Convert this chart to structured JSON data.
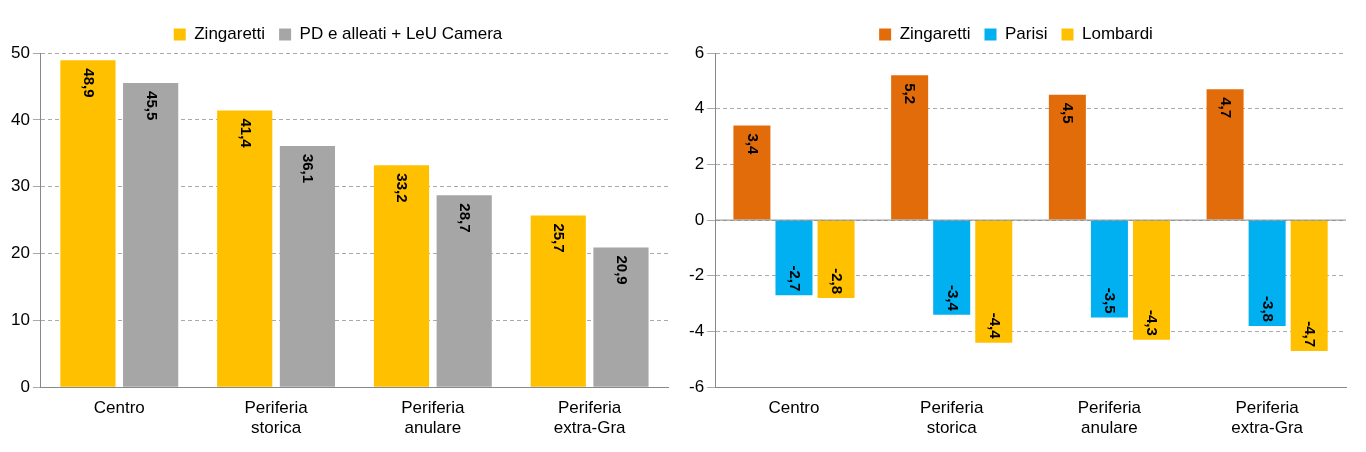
{
  "chart_data": [
    {
      "type": "bar",
      "categories": [
        "Centro",
        "Periferia storica",
        "Periferia anulare",
        "Periferia extra-Gra"
      ],
      "ylim": [
        0,
        50
      ],
      "yticks": [
        0,
        10,
        20,
        30,
        40,
        50
      ],
      "grid": "y",
      "legend": "top",
      "series": [
        {
          "name": "Zingaretti",
          "color": "#ffc000",
          "values": [
            48.9,
            41.4,
            33.2,
            25.7
          ],
          "value_labels": [
            "48,9",
            "41,4",
            "33,2",
            "25,7"
          ]
        },
        {
          "name": "PD e alleati + LeU Camera",
          "color": "#a6a6a6",
          "values": [
            45.5,
            36.1,
            28.7,
            20.9
          ],
          "value_labels": [
            "45,5",
            "36,1",
            "28,7",
            "20,9"
          ]
        }
      ]
    },
    {
      "type": "bar",
      "categories": [
        "Centro",
        "Periferia storica",
        "Periferia anulare",
        "Periferia extra-Gra"
      ],
      "ylim": [
        -6,
        6
      ],
      "ref_lines": [
        {
          "axis": "y",
          "value": 0,
          "color": "#888888"
        }
      ],
      "yticks": [
        -6,
        -4,
        -2,
        0,
        2,
        4,
        6
      ],
      "grid": "y",
      "legend": "top",
      "series": [
        {
          "name": "Zingaretti",
          "color": "#e36c0a",
          "values": [
            3.4,
            5.2,
            4.5,
            4.7
          ],
          "value_labels": [
            "3,4",
            "5,2",
            "4,5",
            "4,7"
          ]
        },
        {
          "name": "Parisi",
          "color": "#00b0f0",
          "values": [
            -2.7,
            -3.4,
            -3.5,
            -3.8
          ],
          "value_labels": [
            "-2,7",
            "-3,4",
            "-3,5",
            "-3,8"
          ]
        },
        {
          "name": "Lombardi",
          "color": "#ffc000",
          "values": [
            -2.8,
            -4.4,
            -4.3,
            -4.7
          ],
          "value_labels": [
            "-2,8",
            "-4,4",
            "-4,3",
            "-4,7"
          ]
        }
      ]
    }
  ]
}
